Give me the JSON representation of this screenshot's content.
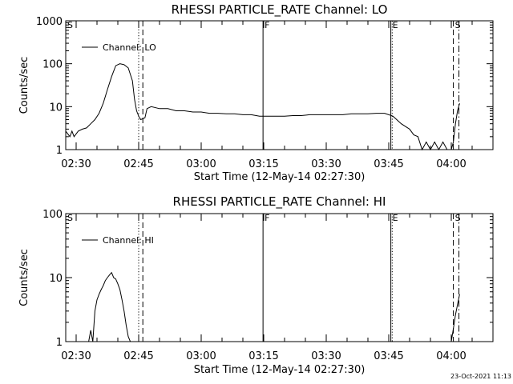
{
  "chart_data": [
    {
      "type": "line",
      "title": "RHESSI PARTICLE_RATE Channel: LO",
      "xlabel": "Start Time (12-May-14 02:27:30)",
      "ylabel": "Counts/sec",
      "yscale": "log",
      "ylim": [
        1,
        1000
      ],
      "xlim": [
        "02:27:30",
        "04:10:00"
      ],
      "x_ticks": [
        "02:30",
        "02:45",
        "03:00",
        "03:15",
        "03:30",
        "03:45",
        "04:00"
      ],
      "y_ticks": [
        "1",
        "10",
        "100",
        "1000"
      ],
      "legend": {
        "position": "top-left",
        "entries": [
          "Channel: LO"
        ]
      },
      "markers": [
        {
          "label": "S",
          "time": "02:27:30",
          "style": "none"
        },
        {
          "label": "",
          "time": "02:45:00",
          "style": "dotted"
        },
        {
          "label": "",
          "time": "02:46:00",
          "style": "dashed"
        },
        {
          "label": "F",
          "time": "03:14:50",
          "style": "solid"
        },
        {
          "label": "E",
          "time": "03:45:30",
          "style": "solid"
        },
        {
          "label": "",
          "time": "03:45:50",
          "style": "dotted"
        },
        {
          "label": "S",
          "time": "04:00:30",
          "style": "dashed"
        },
        {
          "label": "",
          "time": "04:01:50",
          "style": "dashdot"
        }
      ],
      "series": [
        {
          "name": "Channel: LO",
          "x": [
            "02:27:30",
            "02:28:30",
            "02:29:00",
            "02:29:30",
            "02:30:30",
            "02:31:30",
            "02:32:30",
            "02:33:30",
            "02:34:30",
            "02:35:30",
            "02:36:30",
            "02:37:30",
            "02:38:30",
            "02:39:30",
            "02:40:30",
            "02:41:30",
            "02:42:30",
            "02:43:30",
            "02:44:00",
            "02:44:30",
            "02:45:00",
            "02:45:30",
            "02:46:30",
            "02:47:00",
            "02:48:00",
            "02:50:00",
            "02:52:00",
            "02:54:00",
            "02:56:00",
            "02:58:00",
            "03:00:00",
            "03:02:00",
            "03:04:00",
            "03:06:00",
            "03:08:00",
            "03:10:00",
            "03:12:00",
            "03:14:00",
            "03:16:00",
            "03:18:00",
            "03:20:00",
            "03:22:00",
            "03:24:00",
            "03:26:00",
            "03:28:00",
            "03:30:00",
            "03:32:00",
            "03:34:00",
            "03:36:00",
            "03:38:00",
            "03:40:00",
            "03:42:00",
            "03:44:00",
            "03:46:00",
            "03:48:00",
            "03:50:00",
            "03:51:00",
            "03:52:00",
            "03:53:00",
            "03:54:00",
            "03:55:00",
            "03:56:00",
            "03:57:00",
            "03:58:00",
            "03:59:00",
            "04:00:00",
            "04:00:30",
            "04:01:00",
            "04:01:30",
            "04:02:00"
          ],
          "y": [
            2.7,
            2.0,
            2.7,
            2.0,
            2.7,
            3.0,
            3.2,
            4.0,
            5.0,
            7.0,
            12,
            25,
            50,
            90,
            100,
            95,
            80,
            40,
            15,
            8,
            6,
            5,
            5.5,
            9,
            10,
            9,
            9,
            8,
            8,
            7.5,
            7.5,
            7,
            7,
            6.8,
            6.8,
            6.5,
            6.5,
            6,
            6,
            6,
            6,
            6.2,
            6.2,
            6.5,
            6.5,
            6.5,
            6.5,
            6.5,
            6.8,
            6.8,
            6.8,
            7,
            7,
            6,
            4,
            3,
            2.2,
            2.0,
            1,
            1.5,
            1,
            1.5,
            1,
            1.5,
            1,
            1,
            1.5,
            4,
            8,
            12
          ]
        }
      ]
    },
    {
      "type": "line",
      "title": "RHESSI PARTICLE_RATE Channel: HI",
      "xlabel": "Start Time (12-May-14 02:27:30)",
      "ylabel": "Counts/sec",
      "yscale": "log",
      "ylim": [
        1,
        100
      ],
      "xlim": [
        "02:27:30",
        "04:10:00"
      ],
      "x_ticks": [
        "02:30",
        "02:45",
        "03:00",
        "03:15",
        "03:30",
        "03:45",
        "04:00"
      ],
      "y_ticks": [
        "1",
        "10",
        "100"
      ],
      "legend": {
        "position": "top-left",
        "entries": [
          "Channel: HI"
        ]
      },
      "markers": [
        {
          "label": "S",
          "time": "02:27:30",
          "style": "none"
        },
        {
          "label": "",
          "time": "02:45:00",
          "style": "dotted"
        },
        {
          "label": "",
          "time": "02:46:00",
          "style": "dashed"
        },
        {
          "label": "F",
          "time": "03:14:50",
          "style": "solid"
        },
        {
          "label": "E",
          "time": "03:45:30",
          "style": "solid"
        },
        {
          "label": "",
          "time": "03:45:50",
          "style": "dotted"
        },
        {
          "label": "S",
          "time": "04:00:30",
          "style": "dashed"
        },
        {
          "label": "",
          "time": "04:01:50",
          "style": "dashdot"
        }
      ],
      "series": [
        {
          "name": "Channel: HI",
          "x": [
            "02:33:00",
            "02:33:30",
            "02:34:00",
            "02:34:30",
            "02:35:00",
            "02:35:30",
            "02:36:00",
            "02:36:30",
            "02:37:00",
            "02:37:30",
            "02:38:00",
            "02:38:30",
            "02:39:00",
            "02:39:30",
            "02:40:00",
            "02:40:30",
            "02:41:00",
            "02:41:30",
            "02:42:00",
            "02:42:30",
            "02:43:00",
            "02:59:00",
            "04:00:00",
            "04:00:30",
            "04:01:00",
            "04:01:30",
            "04:02:00"
          ],
          "y": [
            1.0,
            1.5,
            1.0,
            3.0,
            4.5,
            5.5,
            6.5,
            7.5,
            9.0,
            10,
            11,
            12,
            10,
            9.5,
            8.0,
            6.5,
            4.5,
            3.0,
            1.8,
            1.2,
            1.0,
            1.0,
            1.0,
            1.6,
            2.6,
            3.8,
            5.5
          ]
        }
      ]
    }
  ],
  "footer": {
    "stamp": "23-Oct-2021 11:13"
  }
}
